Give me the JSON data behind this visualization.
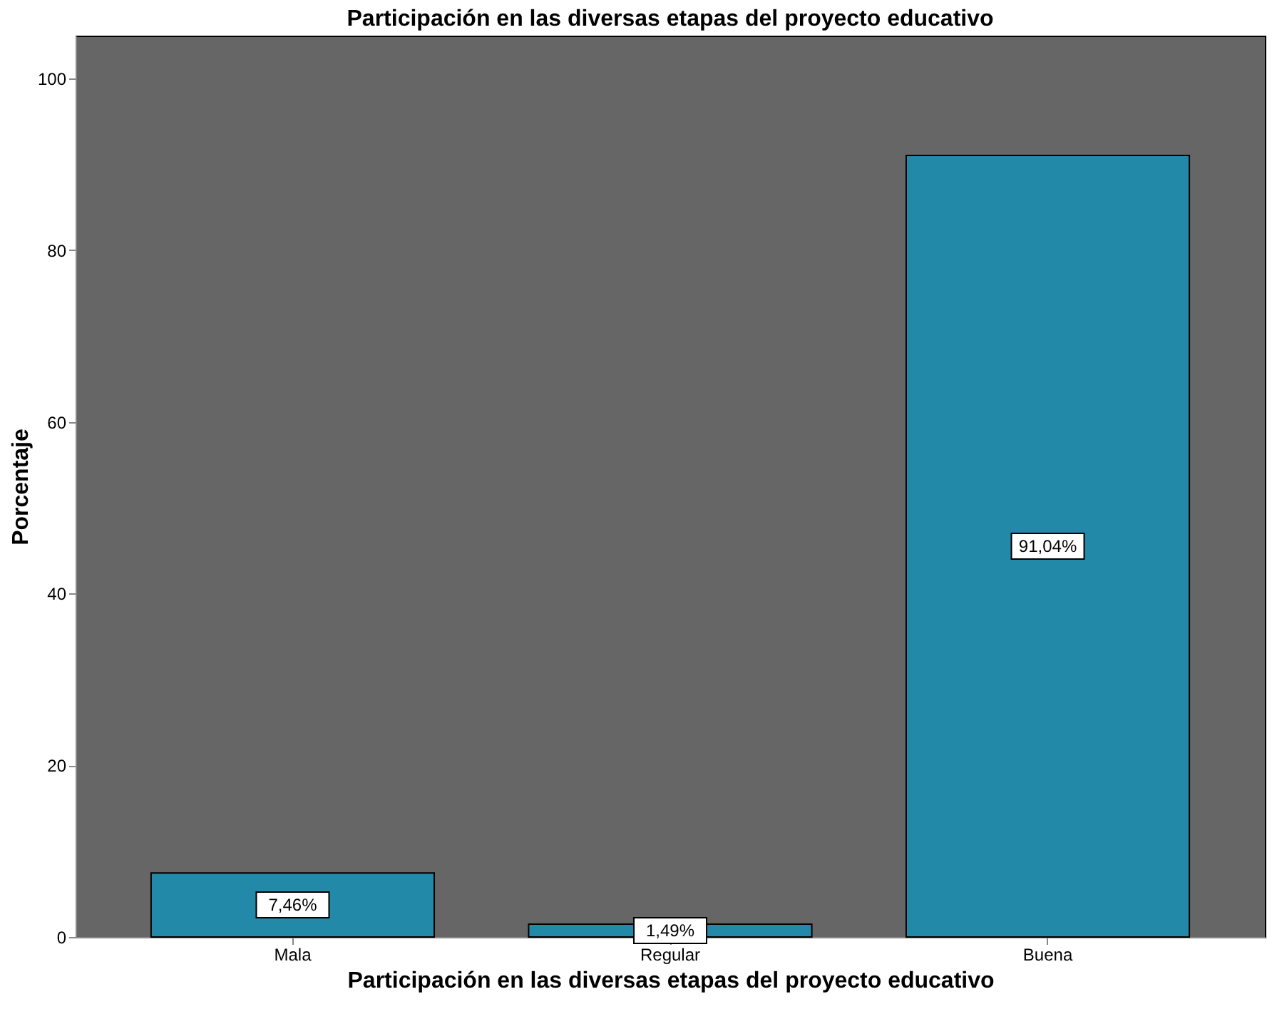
{
  "chart_data": {
    "type": "bar",
    "title": "Participación en las diversas etapas del proyecto educativo",
    "xlabel": "Participación en las diversas etapas del proyecto educativo",
    "ylabel": "Porcentaje",
    "categories": [
      "Mala",
      "Regular",
      "Buena"
    ],
    "values": [
      7.46,
      1.49,
      91.04
    ],
    "value_labels": [
      "7,46%",
      "1,49%",
      "91,04%"
    ],
    "color": "#2389a9",
    "ylim": [
      0,
      105
    ],
    "yticks": [
      0,
      20,
      40,
      60,
      80,
      100
    ],
    "grid": false
  }
}
